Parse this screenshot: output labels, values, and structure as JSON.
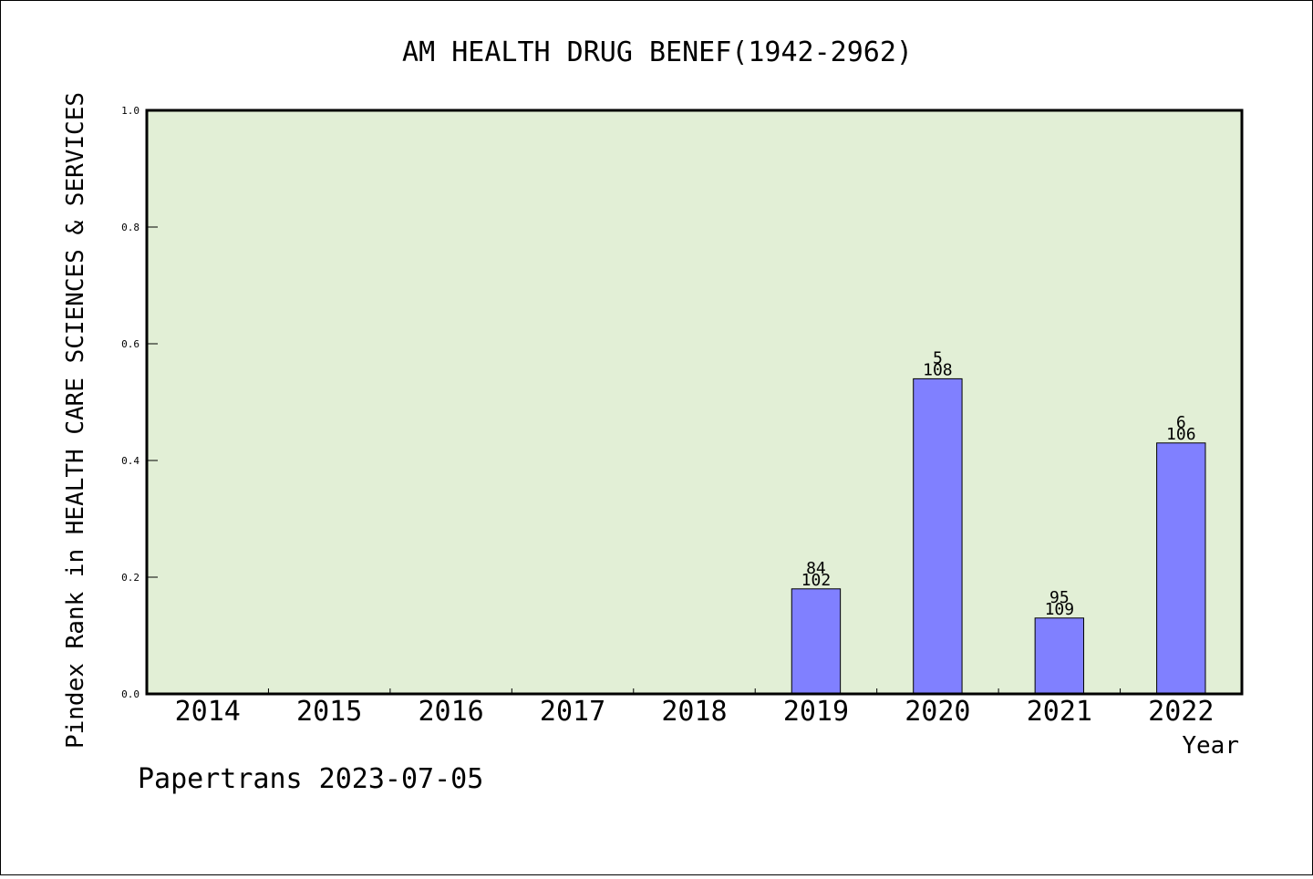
{
  "chart_data": {
    "type": "bar",
    "title": "AM HEALTH DRUG BENEF(1942-2962)",
    "xlabel": "Year",
    "ylabel": "Pindex Rank in HEALTH CARE SCIENCES & SERVICES",
    "categories": [
      "2014",
      "2015",
      "2016",
      "2017",
      "2018",
      "2019",
      "2020",
      "2021",
      "2022"
    ],
    "values": [
      0,
      0,
      0,
      0,
      0,
      0.18,
      0.54,
      0.13,
      0.43
    ],
    "bar_labels": [
      [
        "",
        ""
      ],
      [
        "",
        ""
      ],
      [
        "",
        ""
      ],
      [
        "",
        ""
      ],
      [
        "",
        ""
      ],
      [
        "84",
        "102"
      ],
      [
        "5",
        "108"
      ],
      [
        "95",
        "109"
      ],
      [
        "6",
        "106"
      ]
    ],
    "ylim": [
      0,
      1.0
    ],
    "yticks": [
      "0.0",
      "0.2",
      "0.4",
      "0.6",
      "0.8",
      "1.0"
    ],
    "grid": false,
    "colors": {
      "plot_bg": "#e2efd6",
      "bar": "#8080ff",
      "axis": "#000000"
    }
  },
  "footer": {
    "note": "Papertrans 2023-07-05"
  }
}
